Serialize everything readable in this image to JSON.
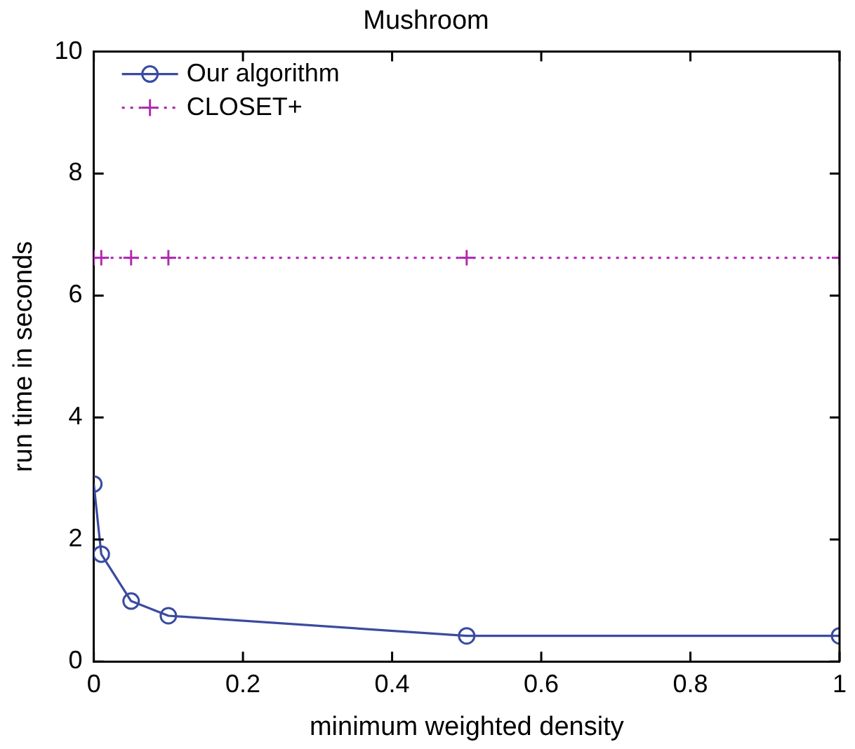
{
  "chart_data": {
    "type": "line",
    "title": "Mushroom",
    "xlabel": "minimum weighted density",
    "ylabel": "run time in seconds",
    "xlim": [
      0,
      1
    ],
    "xticks": [
      0,
      0.2,
      0.4,
      0.6,
      0.8,
      1
    ],
    "ylim": [
      0,
      10
    ],
    "yticks": [
      0,
      2,
      4,
      6,
      8,
      10
    ],
    "grid": false,
    "legend": "top left",
    "series": [
      {
        "name": "Our algorithm",
        "color": "#3a4ba0",
        "x": [
          0,
          0.01,
          0.05,
          0.1,
          0.5,
          1
        ],
        "values": [
          2.91,
          1.76,
          0.99,
          0.75,
          0.42,
          0.42
        ],
        "marker": "circle",
        "line_style": "solid"
      },
      {
        "name": "CLOSET+",
        "color": "#b02cb0",
        "x": [
          0,
          0.01,
          0.05,
          0.1,
          0.5,
          1
        ],
        "values": [
          6.62,
          6.62,
          6.62,
          6.62,
          6.62,
          6.62
        ],
        "marker": "cross",
        "line_style": "dotted"
      }
    ]
  }
}
